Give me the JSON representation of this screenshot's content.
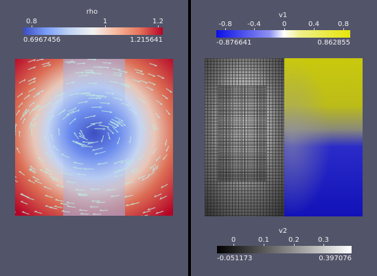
{
  "left_view": {
    "colorbar": {
      "title": "rho",
      "ticks": [
        "0.8",
        "1",
        "1.2"
      ],
      "min_label": "0.6967456",
      "max_label": "1.215641"
    },
    "colormap": [
      "#3b4cc0",
      "#f2f2f2",
      "#b40426"
    ]
  },
  "right_view": {
    "top_colorbar": {
      "title": "v1",
      "ticks": [
        "-0.8",
        "-0.4",
        "0",
        "0.4",
        "0.8"
      ],
      "min_label": "-0.876641",
      "max_label": "0.862855"
    },
    "top_colormap": [
      "#0a10e6",
      "#ffffff",
      "#e6e60a"
    ],
    "bottom_colorbar": {
      "title": "v2",
      "ticks": [
        "0",
        "0.1",
        "0.2",
        "0.3"
      ],
      "min_label": "-0.051173",
      "max_label": "0.397076"
    },
    "bottom_colormap": [
      "#000000",
      "#ffffff"
    ]
  }
}
